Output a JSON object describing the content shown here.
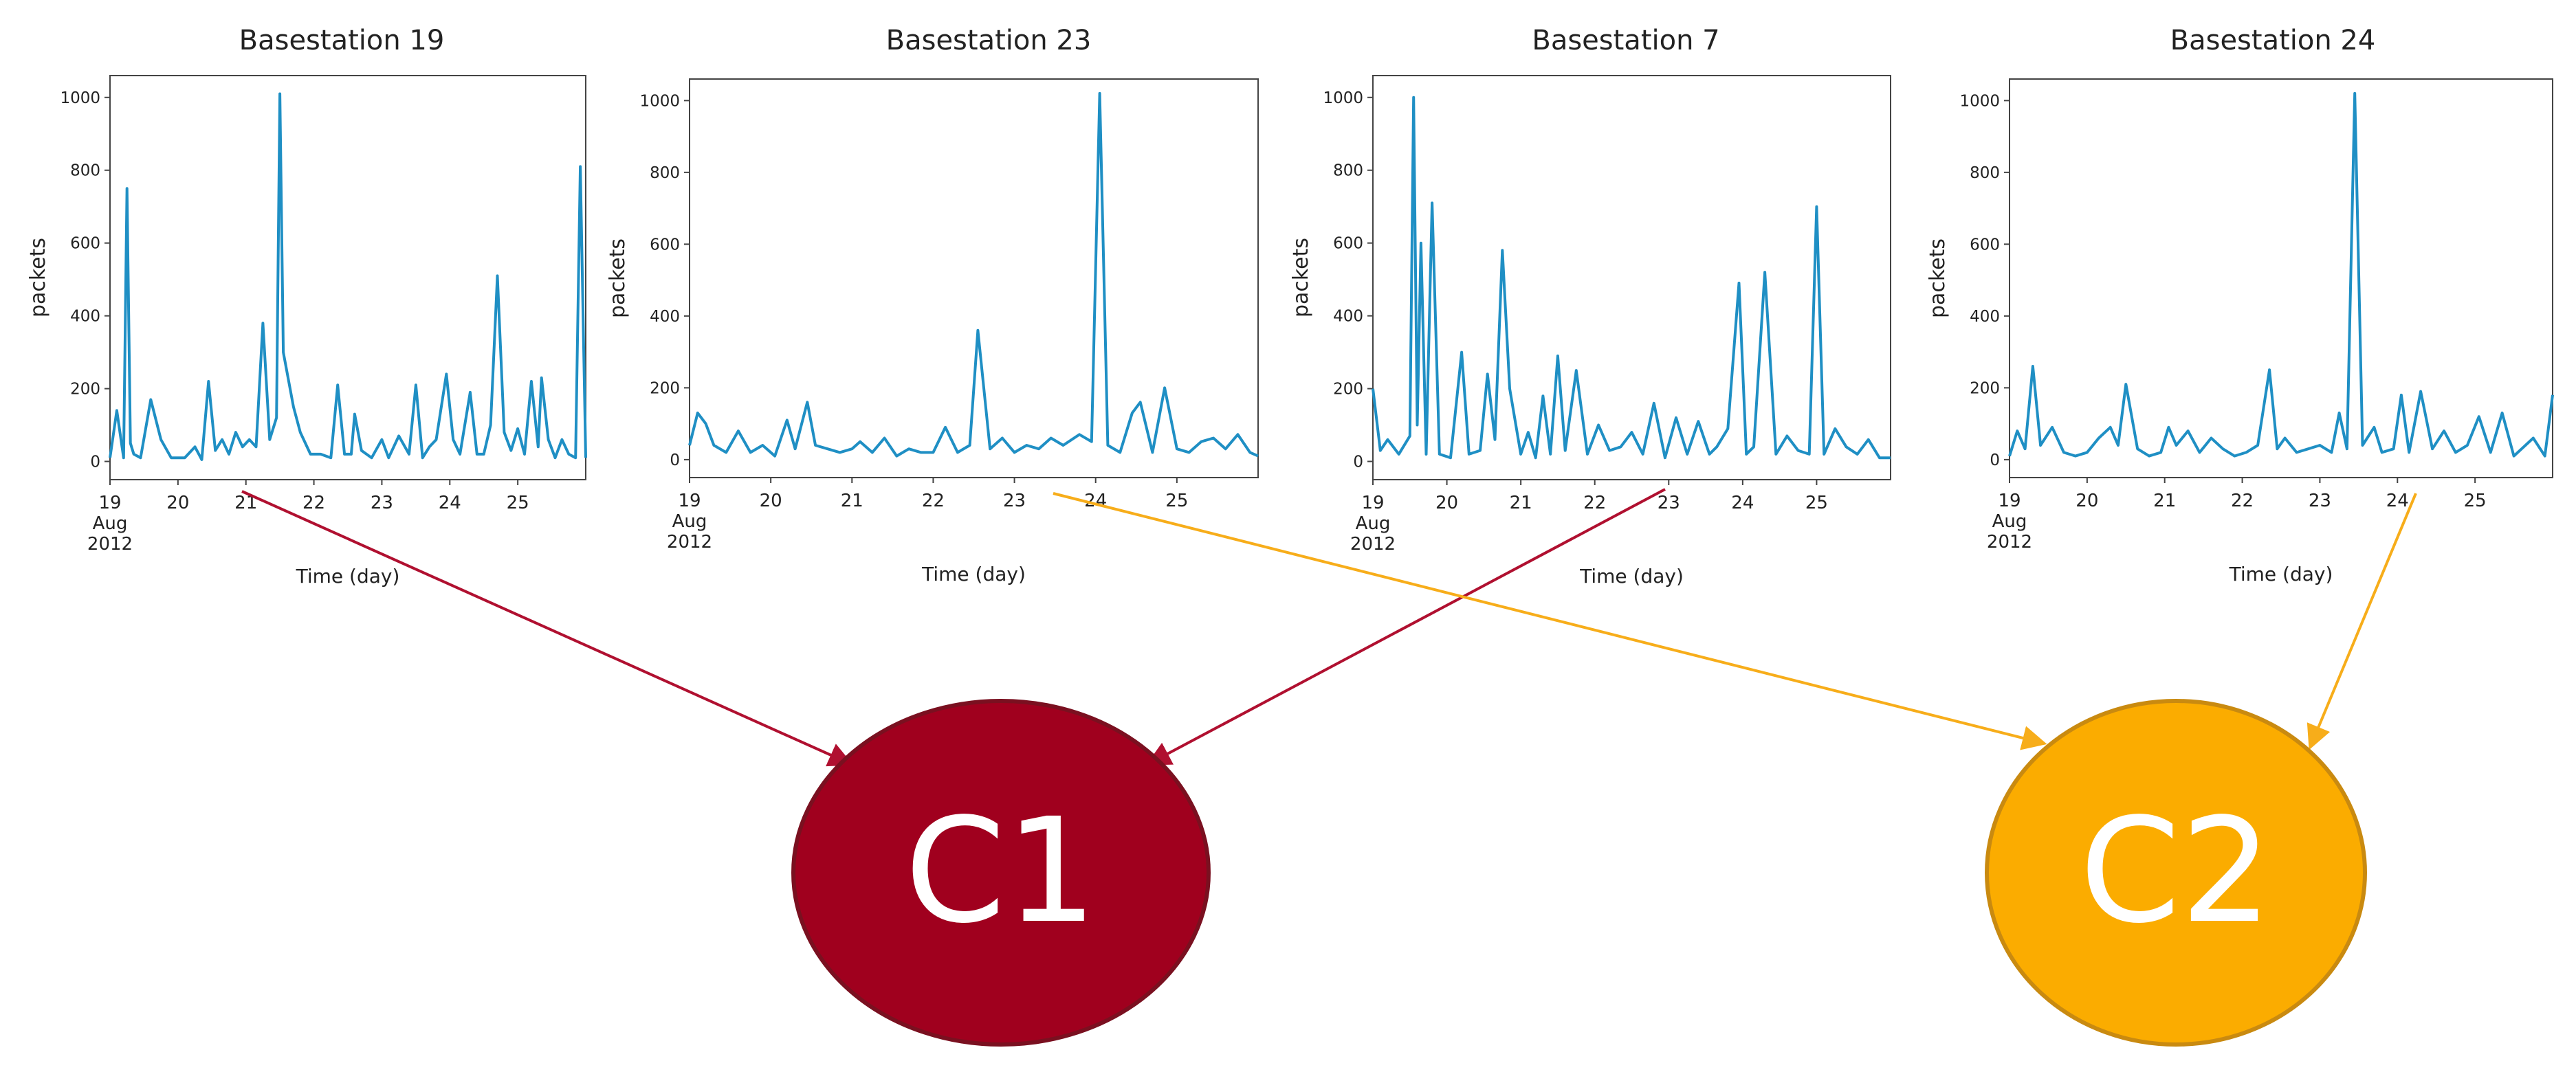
{
  "chart_data": [
    {
      "type": "line",
      "title": "Basestation 19",
      "xlabel": "Time (day)",
      "ylabel": "packets",
      "xlim": [
        19,
        26
      ],
      "ylim": [
        -50,
        1060
      ],
      "yticks": [
        "0",
        "200",
        "400",
        "600",
        "800",
        "1000"
      ],
      "xticks": [
        "19",
        "20",
        "21",
        "22",
        "23",
        "24",
        "25"
      ],
      "xtick_sub": [
        "Aug",
        "2012"
      ],
      "grid": false,
      "color": "#1f8fc4",
      "series": [
        {
          "name": "packets",
          "x": [
            19.0,
            19.1,
            19.2,
            19.25,
            19.3,
            19.35,
            19.45,
            19.6,
            19.75,
            19.9,
            20.1,
            20.25,
            20.35,
            20.45,
            20.55,
            20.65,
            20.75,
            20.85,
            20.95,
            21.05,
            21.15,
            21.25,
            21.35,
            21.45,
            21.5,
            21.55,
            21.7,
            21.8,
            21.95,
            22.1,
            22.25,
            22.35,
            22.45,
            22.55,
            22.6,
            22.7,
            22.85,
            23.0,
            23.1,
            23.25,
            23.4,
            23.5,
            23.6,
            23.7,
            23.8,
            23.95,
            24.05,
            24.15,
            24.3,
            24.4,
            24.5,
            24.6,
            24.7,
            24.8,
            24.9,
            25.0,
            25.1,
            25.2,
            25.3,
            25.35,
            25.45,
            25.55,
            25.65,
            25.75,
            25.85,
            25.92,
            26.0
          ],
          "values": [
            10,
            140,
            10,
            750,
            50,
            20,
            10,
            170,
            60,
            10,
            10,
            40,
            5,
            220,
            30,
            60,
            20,
            80,
            40,
            60,
            40,
            380,
            60,
            120,
            1010,
            300,
            150,
            80,
            20,
            20,
            10,
            210,
            20,
            20,
            130,
            30,
            10,
            60,
            10,
            70,
            20,
            210,
            10,
            40,
            60,
            240,
            60,
            20,
            190,
            20,
            20,
            100,
            510,
            80,
            30,
            90,
            20,
            220,
            40,
            230,
            60,
            10,
            60,
            20,
            10,
            810,
            10
          ]
        }
      ]
    },
    {
      "type": "line",
      "title": "Basestation 23",
      "xlabel": "Time (day)",
      "ylabel": "packets",
      "xlim": [
        19,
        26
      ],
      "ylim": [
        -50,
        1060
      ],
      "yticks": [
        "0",
        "200",
        "400",
        "600",
        "800",
        "1000"
      ],
      "xticks": [
        "19",
        "20",
        "21",
        "22",
        "23",
        "24",
        "25"
      ],
      "xtick_sub": [
        "Aug",
        "2012"
      ],
      "grid": false,
      "color": "#1f8fc4",
      "series": [
        {
          "name": "packets",
          "x": [
            19.0,
            19.1,
            19.2,
            19.3,
            19.45,
            19.6,
            19.75,
            19.9,
            20.05,
            20.2,
            20.3,
            20.45,
            20.55,
            20.7,
            20.85,
            21.0,
            21.1,
            21.25,
            21.4,
            21.55,
            21.7,
            21.85,
            22.0,
            22.15,
            22.3,
            22.45,
            22.55,
            22.7,
            22.85,
            23.0,
            23.15,
            23.3,
            23.45,
            23.6,
            23.8,
            23.95,
            24.05,
            24.15,
            24.3,
            24.45,
            24.55,
            24.7,
            24.85,
            25.0,
            25.15,
            25.3,
            25.45,
            25.6,
            25.75,
            25.9,
            26.0
          ],
          "values": [
            40,
            130,
            100,
            40,
            20,
            80,
            20,
            40,
            10,
            110,
            30,
            160,
            40,
            30,
            20,
            30,
            50,
            20,
            60,
            10,
            30,
            20,
            20,
            90,
            20,
            40,
            360,
            30,
            60,
            20,
            40,
            30,
            60,
            40,
            70,
            50,
            1020,
            40,
            20,
            130,
            160,
            20,
            200,
            30,
            20,
            50,
            60,
            30,
            70,
            20,
            10
          ]
        }
      ]
    },
    {
      "type": "line",
      "title": "Basestation 7",
      "xlabel": "Time (day)",
      "ylabel": "packets",
      "xlim": [
        19,
        26
      ],
      "ylim": [
        -50,
        1060
      ],
      "yticks": [
        "0",
        "200",
        "400",
        "600",
        "800",
        "1000"
      ],
      "xticks": [
        "19",
        "20",
        "21",
        "22",
        "23",
        "24",
        "25"
      ],
      "xtick_sub": [
        "Aug",
        "2012"
      ],
      "grid": false,
      "color": "#1f8fc4",
      "series": [
        {
          "name": "packets",
          "x": [
            19.0,
            19.1,
            19.2,
            19.35,
            19.5,
            19.55,
            19.6,
            19.65,
            19.72,
            19.8,
            19.9,
            20.05,
            20.2,
            20.3,
            20.45,
            20.55,
            20.65,
            20.75,
            20.85,
            21.0,
            21.1,
            21.2,
            21.3,
            21.4,
            21.5,
            21.6,
            21.75,
            21.9,
            22.05,
            22.2,
            22.35,
            22.5,
            22.65,
            22.8,
            22.95,
            23.1,
            23.25,
            23.4,
            23.55,
            23.65,
            23.8,
            23.95,
            24.05,
            24.15,
            24.3,
            24.45,
            24.6,
            24.75,
            24.9,
            25.0,
            25.1,
            25.25,
            25.4,
            25.55,
            25.7,
            25.85,
            26.0
          ],
          "values": [
            200,
            30,
            60,
            20,
            70,
            1000,
            100,
            600,
            20,
            710,
            20,
            10,
            300,
            20,
            30,
            240,
            60,
            580,
            200,
            20,
            80,
            10,
            180,
            20,
            290,
            30,
            250,
            20,
            100,
            30,
            40,
            80,
            20,
            160,
            10,
            120,
            20,
            110,
            20,
            40,
            90,
            490,
            20,
            40,
            520,
            20,
            70,
            30,
            20,
            700,
            20,
            90,
            40,
            20,
            60,
            10,
            10
          ]
        }
      ]
    },
    {
      "type": "line",
      "title": "Basestation 24",
      "xlabel": "Time (day)",
      "ylabel": "packets",
      "xlim": [
        19,
        26
      ],
      "ylim": [
        -50,
        1060
      ],
      "yticks": [
        "0",
        "200",
        "400",
        "600",
        "800",
        "1000"
      ],
      "xticks": [
        "19",
        "20",
        "21",
        "22",
        "23",
        "24",
        "25"
      ],
      "xtick_sub": [
        "Aug",
        "2012"
      ],
      "grid": false,
      "color": "#1f8fc4",
      "series": [
        {
          "name": "packets",
          "x": [
            19.0,
            19.1,
            19.2,
            19.3,
            19.4,
            19.55,
            19.7,
            19.85,
            20.0,
            20.15,
            20.3,
            20.4,
            20.5,
            20.65,
            20.8,
            20.95,
            21.05,
            21.15,
            21.3,
            21.45,
            21.6,
            21.75,
            21.9,
            22.05,
            22.2,
            22.35,
            22.45,
            22.55,
            22.7,
            22.85,
            23.0,
            23.15,
            23.25,
            23.35,
            23.45,
            23.55,
            23.7,
            23.8,
            23.95,
            24.05,
            24.15,
            24.3,
            24.45,
            24.6,
            24.75,
            24.9,
            25.05,
            25.2,
            25.35,
            25.5,
            25.6,
            25.75,
            25.9,
            26.0
          ],
          "values": [
            10,
            80,
            30,
            260,
            40,
            90,
            20,
            10,
            20,
            60,
            90,
            40,
            210,
            30,
            10,
            20,
            90,
            40,
            80,
            20,
            60,
            30,
            10,
            20,
            40,
            250,
            30,
            60,
            20,
            30,
            40,
            20,
            130,
            30,
            1020,
            40,
            90,
            20,
            30,
            180,
            20,
            190,
            30,
            80,
            20,
            40,
            120,
            20,
            130,
            10,
            30,
            60,
            10,
            180
          ]
        }
      ]
    }
  ],
  "clusters": [
    {
      "label": "C1",
      "color": "#a0001e"
    },
    {
      "label": "C2",
      "color": "#fbac00"
    }
  ],
  "assignments": [
    {
      "from": "Basestation 19",
      "to": "C1",
      "color": "#b01030"
    },
    {
      "from": "Basestation 7",
      "to": "C1",
      "color": "#b01030"
    },
    {
      "from": "Basestation 23",
      "to": "C2",
      "color": "#f7ad1a"
    },
    {
      "from": "Basestation 24",
      "to": "C2",
      "color": "#f7ad1a"
    }
  ]
}
